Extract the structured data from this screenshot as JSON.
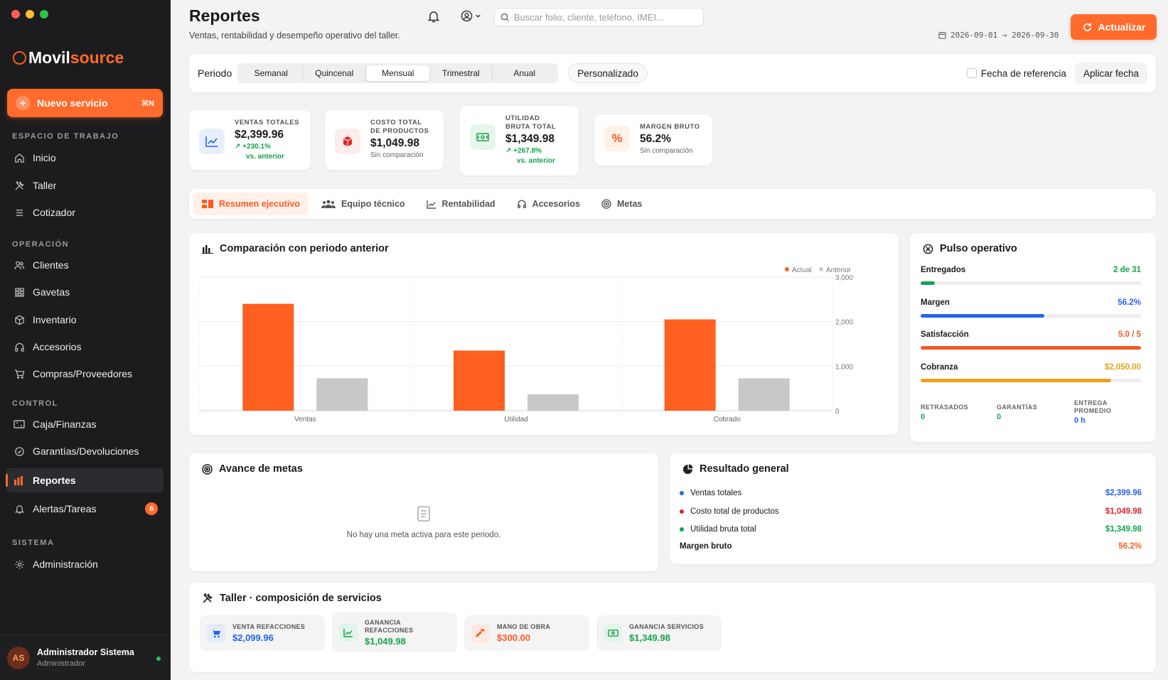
{
  "sidebar": {
    "brand": {
      "part1": "Movil",
      "part2": "source"
    },
    "new_service": {
      "label": "Nuevo servicio",
      "shortcut": "⌘N"
    },
    "sections": {
      "workspace": "ESPACIO DE TRABAJO",
      "operation": "OPERACIÓN",
      "control": "CONTROL",
      "system": "SISTEMA"
    },
    "items": {
      "inicio": "Inicio",
      "taller": "Taller",
      "cotizador": "Cotizador",
      "clientes": "Clientes",
      "gavetas": "Gavetas",
      "inventario": "Inventario",
      "accesorios": "Accesorios",
      "compras": "Compras/Proveedores",
      "caja": "Caja/Finanzas",
      "garantias": "Garantías/Devoluciones",
      "reportes": "Reportes",
      "alertas": "Alertas/Tareas",
      "alertas_count": "6",
      "administracion": "Administración"
    },
    "user": {
      "initials": "AS",
      "name": "Administrador Sistema",
      "role": "Administrador"
    }
  },
  "header": {
    "title": "Reportes",
    "subtitle": "Ventas, rentabilidad y desempeño operativo del taller.",
    "search_placeholder": "Buscar folio, cliente, teléfono, IMEI...",
    "date_range": "2026-09-01 → 2026-09-30",
    "refresh": "Actualizar"
  },
  "period": {
    "label": "Periodo",
    "options": [
      "Semanal",
      "Quincenal",
      "Mensual",
      "Trimestral",
      "Anual"
    ],
    "selected": "Mensual",
    "custom": "Personalizado",
    "ref_date": "Fecha de referencia",
    "apply": "Aplicar fecha"
  },
  "kpis": {
    "ventas": {
      "label": "VENTAS TOTALES",
      "value": "$2,399.96",
      "delta": "+230.1%",
      "delta2": "vs. anterior"
    },
    "costo": {
      "label1": "COSTO TOTAL",
      "label2": "DE PRODUCTOS",
      "value": "$1,049.98",
      "note": "Sin comparación"
    },
    "utilidad": {
      "label1": "UTILIDAD",
      "label2": "BRUTA TOTAL",
      "value": "$1,349.98",
      "delta": "+267.8%",
      "delta2": "vs. anterior"
    },
    "margen": {
      "label": "MARGEN BRUTO",
      "value": "56.2%",
      "note": "Sin comparación"
    }
  },
  "tabs": [
    "Resumen ejecutivo",
    "Equipo técnico",
    "Rentabilidad",
    "Accesorios",
    "Metas"
  ],
  "comparison": {
    "title": "Comparación con periodo anterior"
  },
  "chart_data": {
    "type": "bar",
    "categories": [
      "Ventas",
      "Utilidad",
      "Cobrado"
    ],
    "series": [
      {
        "name": "Actual",
        "values": [
          2400,
          1350,
          2050
        ],
        "color": "#ff5f1f"
      },
      {
        "name": "Anterior",
        "values": [
          727,
          367,
          727
        ],
        "color": "#c8c8ca"
      }
    ],
    "ylim": [
      0,
      3000
    ],
    "yticks": [
      "0",
      "1,000",
      "2,000",
      "3,000"
    ],
    "legend": "top-right",
    "grid": true,
    "xlabel": "",
    "ylabel": ""
  },
  "pulse": {
    "title": "Pulso operativo",
    "rows": [
      {
        "label": "Entregados",
        "value": "2 de 31",
        "fraction": 0.065,
        "color": "#16a34a"
      },
      {
        "label": "Margen",
        "value": "56.2%",
        "fraction": 0.562,
        "color": "#2563eb"
      },
      {
        "label": "Satisfacción",
        "value": "5.0 / 5",
        "fraction": 1.0,
        "color": "#f05a1e"
      },
      {
        "label": "Cobranza",
        "value": "$2,050.00",
        "fraction": 0.865,
        "color": "#e8a21e"
      }
    ],
    "mini": {
      "retrasados": {
        "label": "RETRASADOS",
        "value": "0"
      },
      "garantias": {
        "label": "GARANTÍAS",
        "value": "0"
      },
      "entrega": {
        "label1": "ENTREGA",
        "label2": "PROMEDIO",
        "value": "0 h"
      }
    }
  },
  "goals": {
    "title": "Avance de metas",
    "empty": "No hay una meta activa para este periodo."
  },
  "result": {
    "title": "Resultado general",
    "rows": [
      {
        "label": "Ventas totales",
        "value": "$2,399.96",
        "color": "#2563eb"
      },
      {
        "label": "Costo total de productos",
        "value": "$1,049.98",
        "color": "#dc2626"
      },
      {
        "label": "Utilidad bruta total",
        "value": "$1,349.98",
        "color": "#16a34a"
      }
    ],
    "margin_label": "Margen bruto",
    "margin_value": "56.2%"
  },
  "workshop": {
    "title": "Taller · composición de servicios",
    "tiles": {
      "venta": {
        "label": "VENTA REFACCIONES",
        "value": "$2,099.96"
      },
      "ganancia": {
        "label1": "GANANCIA",
        "label2": "REFACCIONES",
        "value": "$1,049.98"
      },
      "mano": {
        "label": "MANO DE OBRA",
        "value": "$300.00"
      },
      "servicios": {
        "label": "GANANCIA SERVICIOS",
        "value": "$1,349.98"
      }
    }
  }
}
